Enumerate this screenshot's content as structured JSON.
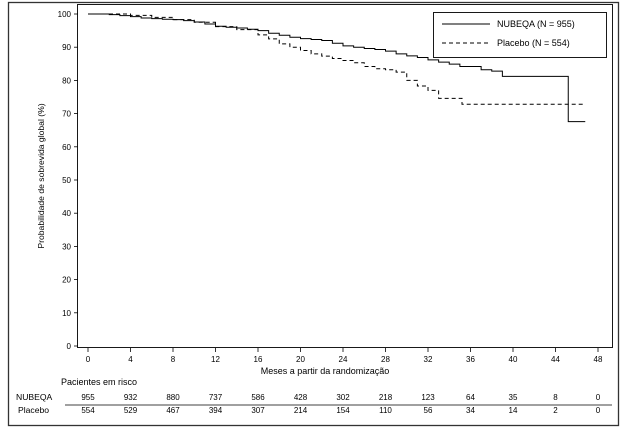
{
  "chart_data": {
    "type": "line",
    "title": "",
    "xlabel": "Meses a partir da randomização",
    "ylabel": "Probabilidade de sobrevida global (%)",
    "xlim": [
      0,
      48
    ],
    "ylim": [
      0,
      100
    ],
    "xticks": [
      0,
      4,
      8,
      12,
      16,
      20,
      24,
      28,
      32,
      36,
      40,
      44,
      48
    ],
    "yticks": [
      0,
      10,
      20,
      30,
      40,
      50,
      60,
      70,
      80,
      90,
      100
    ],
    "grid": false,
    "legend_position": "top-right",
    "series": [
      {
        "name": "NUBEQA (N = 955)",
        "line_style": "solid",
        "color": "#000000",
        "points": [
          [
            0,
            100
          ],
          [
            2,
            99.8
          ],
          [
            3,
            99.5
          ],
          [
            4,
            99.2
          ],
          [
            5,
            98.8
          ],
          [
            6,
            98.6
          ],
          [
            7,
            98.4
          ],
          [
            8,
            98.3
          ],
          [
            9,
            98.0
          ],
          [
            10,
            97.6
          ],
          [
            11,
            97.0
          ],
          [
            12,
            96.3
          ],
          [
            13,
            96.0
          ],
          [
            14,
            95.8
          ],
          [
            15,
            95.4
          ],
          [
            16,
            95.0
          ],
          [
            17,
            94.2
          ],
          [
            18,
            93.6
          ],
          [
            19,
            93.0
          ],
          [
            20,
            92.6
          ],
          [
            21,
            92.3
          ],
          [
            22,
            92.0
          ],
          [
            23,
            91.2
          ],
          [
            24,
            90.4
          ],
          [
            25,
            90.0
          ],
          [
            26,
            89.6
          ],
          [
            27,
            89.3
          ],
          [
            28,
            88.8
          ],
          [
            29,
            88.0
          ],
          [
            30,
            87.4
          ],
          [
            31,
            86.9
          ],
          [
            32,
            86.2
          ],
          [
            33,
            85.5
          ],
          [
            34,
            84.9
          ],
          [
            35,
            84.2
          ],
          [
            37,
            83.2
          ],
          [
            38,
            82.8
          ],
          [
            39,
            81.2
          ],
          [
            45,
            81.2
          ],
          [
            45.2,
            67.6
          ],
          [
            46.8,
            67.6
          ]
        ]
      },
      {
        "name": "Placebo (N = 554)",
        "line_style": "dashed",
        "color": "#000000",
        "points": [
          [
            0,
            100
          ],
          [
            2,
            100
          ],
          [
            4,
            99.6
          ],
          [
            6,
            99.0
          ],
          [
            8,
            98.3
          ],
          [
            10,
            97.5
          ],
          [
            12,
            96.2
          ],
          [
            14,
            95.3
          ],
          [
            16,
            93.7
          ],
          [
            17,
            92.5
          ],
          [
            18,
            91.0
          ],
          [
            19,
            90.0
          ],
          [
            20,
            89.0
          ],
          [
            21,
            88.0
          ],
          [
            22,
            87.3
          ],
          [
            23,
            86.6
          ],
          [
            24,
            86.0
          ],
          [
            25,
            85.3
          ],
          [
            26,
            84.2
          ],
          [
            27,
            83.5
          ],
          [
            28,
            83.2
          ],
          [
            29,
            82.5
          ],
          [
            30,
            80.0
          ],
          [
            31,
            78.3
          ],
          [
            32,
            77.0
          ],
          [
            33,
            74.6
          ],
          [
            35,
            74.6
          ],
          [
            35.2,
            72.8
          ],
          [
            46.8,
            72.8
          ]
        ]
      }
    ],
    "at_risk_table": {
      "title": "Pacientes em risco",
      "times": [
        0,
        4,
        8,
        12,
        16,
        20,
        24,
        28,
        32,
        36,
        40,
        44,
        48
      ],
      "rows": [
        {
          "label": "NUBEQA",
          "values": [
            "955",
            "932",
            "880",
            "737",
            "586",
            "428",
            "302",
            "218",
            "123",
            "64",
            "35",
            "8",
            "0"
          ]
        },
        {
          "label": "Placebo",
          "values": [
            "554",
            "529",
            "467",
            "394",
            "307",
            "214",
            "154",
            "110",
            "56",
            "34",
            "14",
            "2",
            "0"
          ]
        }
      ]
    }
  }
}
